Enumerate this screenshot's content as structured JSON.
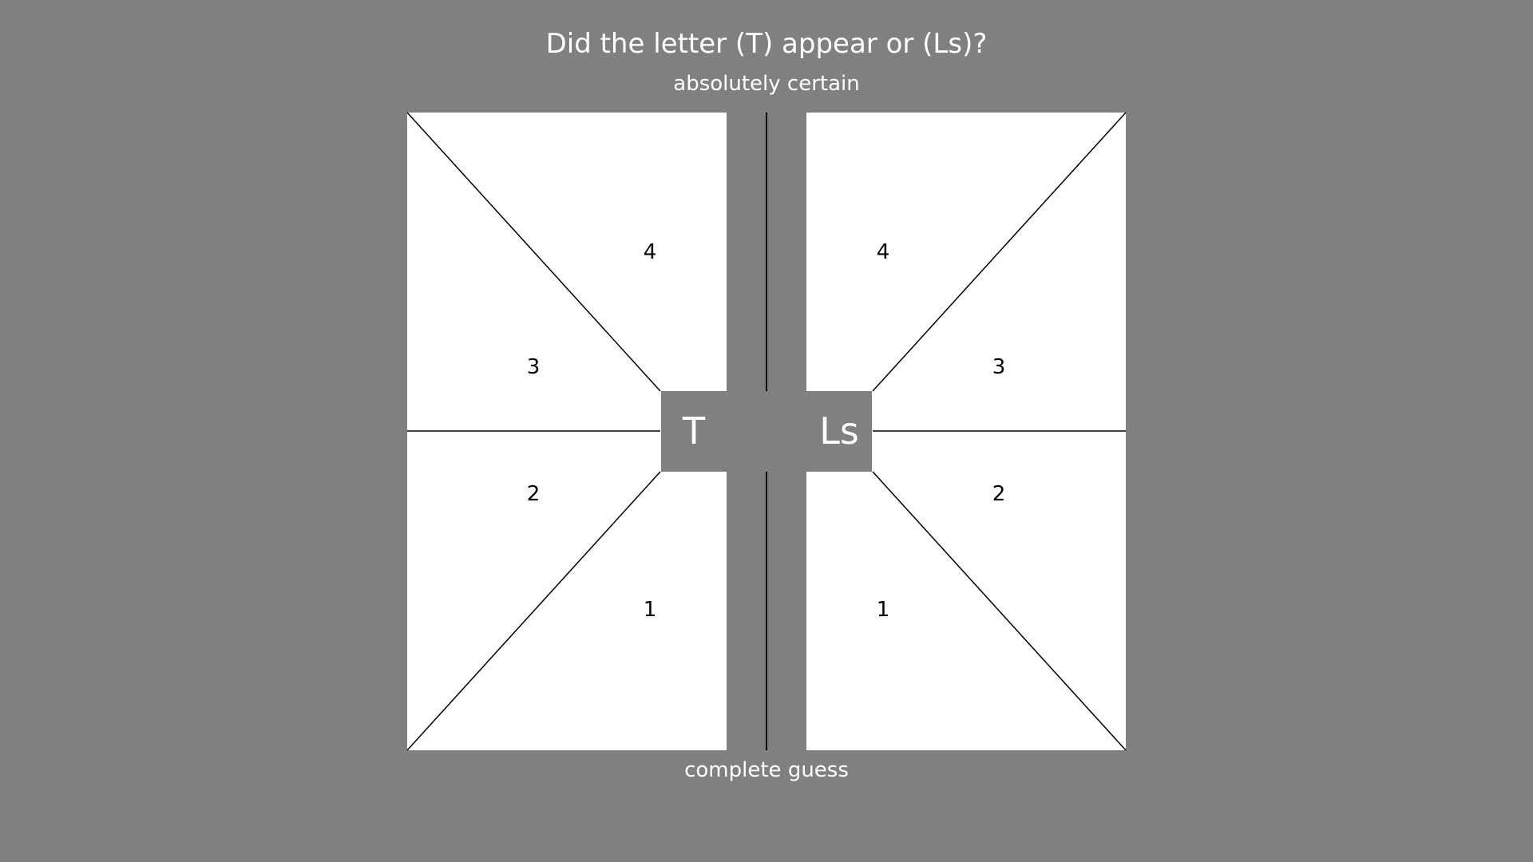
{
  "question": "Did the letter (T) appear or (Ls)?",
  "scale": {
    "top_label": "absolutely certain",
    "bottom_label": "complete guess"
  },
  "options": {
    "left": {
      "letter": "T",
      "ratings": [
        "4",
        "3",
        "2",
        "1"
      ]
    },
    "right": {
      "letter": "Ls",
      "ratings": [
        "4",
        "3",
        "2",
        "1"
      ]
    }
  },
  "colors": {
    "background": "#808080",
    "panel": "#ffffff",
    "line": "#000000",
    "text_on_background": "#ffffff",
    "text_on_panel": "#000000"
  }
}
